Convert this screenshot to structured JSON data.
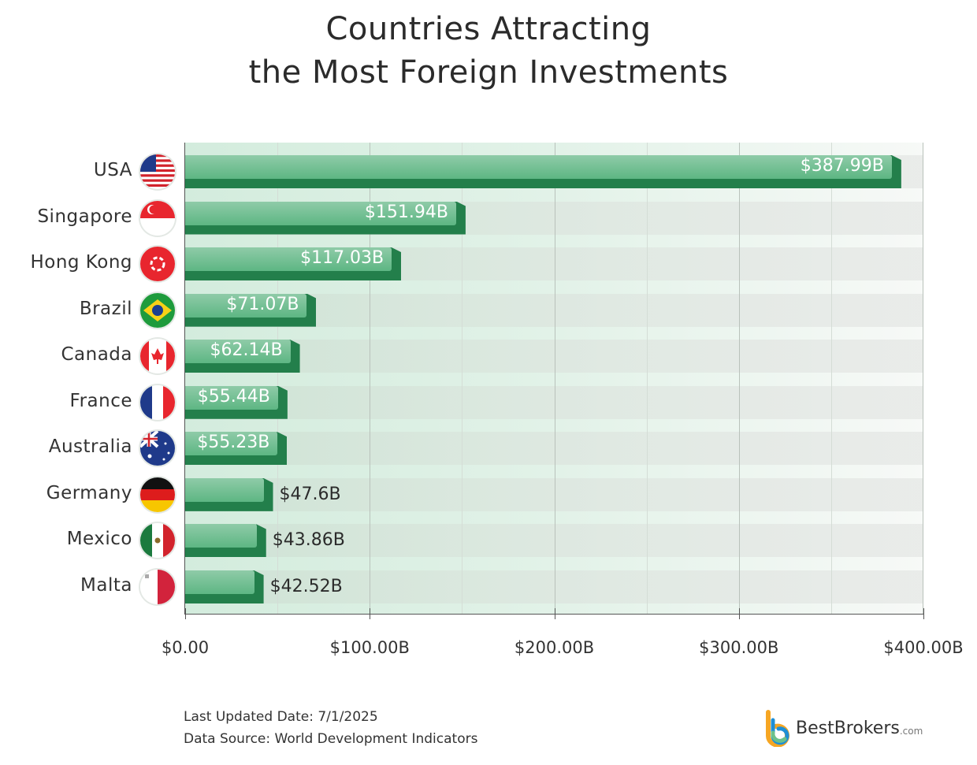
{
  "chart_data": {
    "type": "bar",
    "orientation": "horizontal",
    "title": "Countries Attracting the Most Foreign Investments",
    "title_lines": [
      "Countries Attracting",
      "the Most Foreign Investments"
    ],
    "categories": [
      "USA",
      "Singapore",
      "Hong Kong",
      "Brazil",
      "Canada",
      "France",
      "Australia",
      "Germany",
      "Mexico",
      "Malta"
    ],
    "values": [
      387.99,
      151.94,
      117.03,
      71.07,
      62.14,
      55.44,
      55.23,
      47.6,
      43.86,
      42.52
    ],
    "value_labels": [
      "$387.99B",
      "$151.94B",
      "$117.03B",
      "$71.07B",
      "$62.14B",
      "$55.44B",
      "$55.23B",
      "$47.6B",
      "$43.86B",
      "$42.52B"
    ],
    "flags": [
      "us-flag-icon",
      "singapore-flag-icon",
      "hong-kong-flag-icon",
      "brazil-flag-icon",
      "canada-flag-icon",
      "france-flag-icon",
      "australia-flag-icon",
      "germany-flag-icon",
      "mexico-flag-icon",
      "malta-flag-icon"
    ],
    "xlim": [
      0,
      400
    ],
    "xticks": [
      0,
      100,
      200,
      300,
      400
    ],
    "xtick_labels": [
      "$0.00",
      "$100.00B",
      "$200.00B",
      "$300.00B",
      "$400.00B"
    ],
    "xlabel": "",
    "ylabel": "",
    "grid": true,
    "colors": {
      "bar_top": "#5db683",
      "bar_base": "#237f4b"
    }
  },
  "footer": {
    "updated": "Last Updated Date: 7/1/2025",
    "source": "Data Source: World Development Indicators"
  },
  "logo": {
    "name": "BestBrokers",
    "suffix": ".com"
  }
}
